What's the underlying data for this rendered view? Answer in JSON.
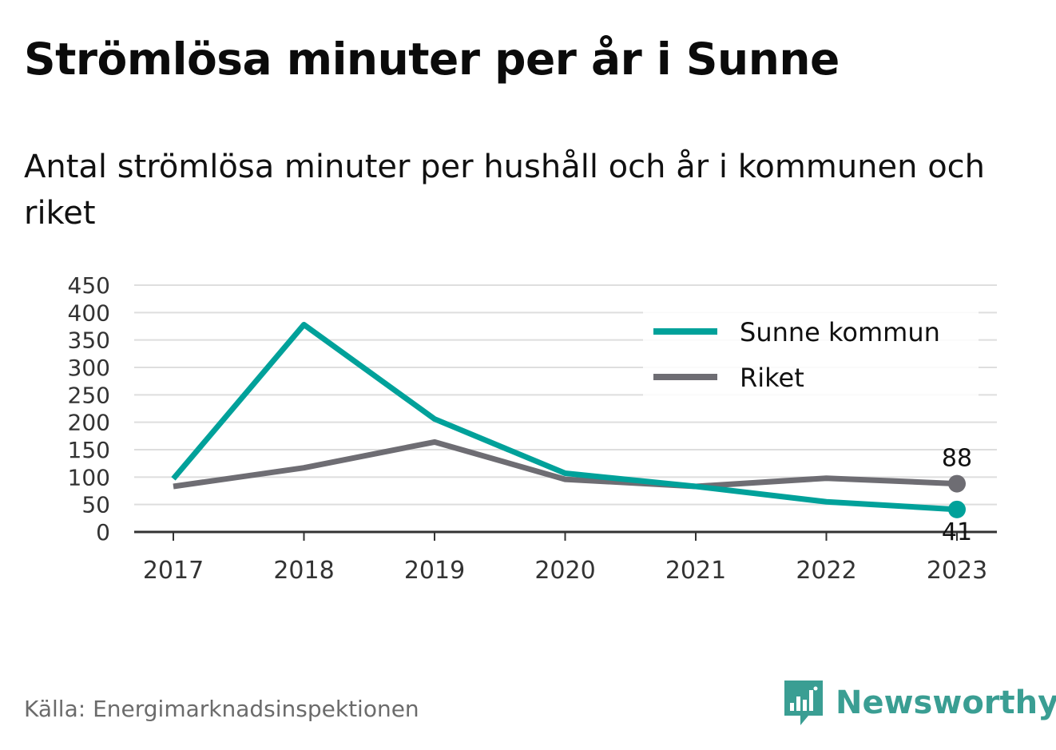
{
  "header": {
    "title": "Strömlösa minuter per år i Sunne",
    "subtitle": "Antal strömlösa minuter per hushåll och år i kommunen och riket"
  },
  "footer": {
    "source": "Källa: Energimarknadsinspektionen",
    "brand": "Newsworthy",
    "brand_icon": "bar-chart-speech-bubble-icon",
    "brand_color": "#3a9e93"
  },
  "chart_data": {
    "type": "line",
    "title": "",
    "xlabel": "",
    "ylabel": "",
    "categories": [
      "2017",
      "2018",
      "2019",
      "2020",
      "2021",
      "2022",
      "2023"
    ],
    "y_ticks": [
      0,
      50,
      100,
      150,
      200,
      250,
      300,
      350,
      400,
      450
    ],
    "ylim": [
      0,
      450
    ],
    "grid": true,
    "legend_position": "top-right",
    "series": [
      {
        "name": "Sunne kommun",
        "color": "#00a19a",
        "values": [
          97,
          378,
          206,
          107,
          83,
          55,
          41
        ],
        "end_label": "41"
      },
      {
        "name": "Riket",
        "color": "#6e6d73",
        "values": [
          83,
          117,
          164,
          96,
          83,
          98,
          88
        ],
        "end_label": "88"
      }
    ]
  }
}
